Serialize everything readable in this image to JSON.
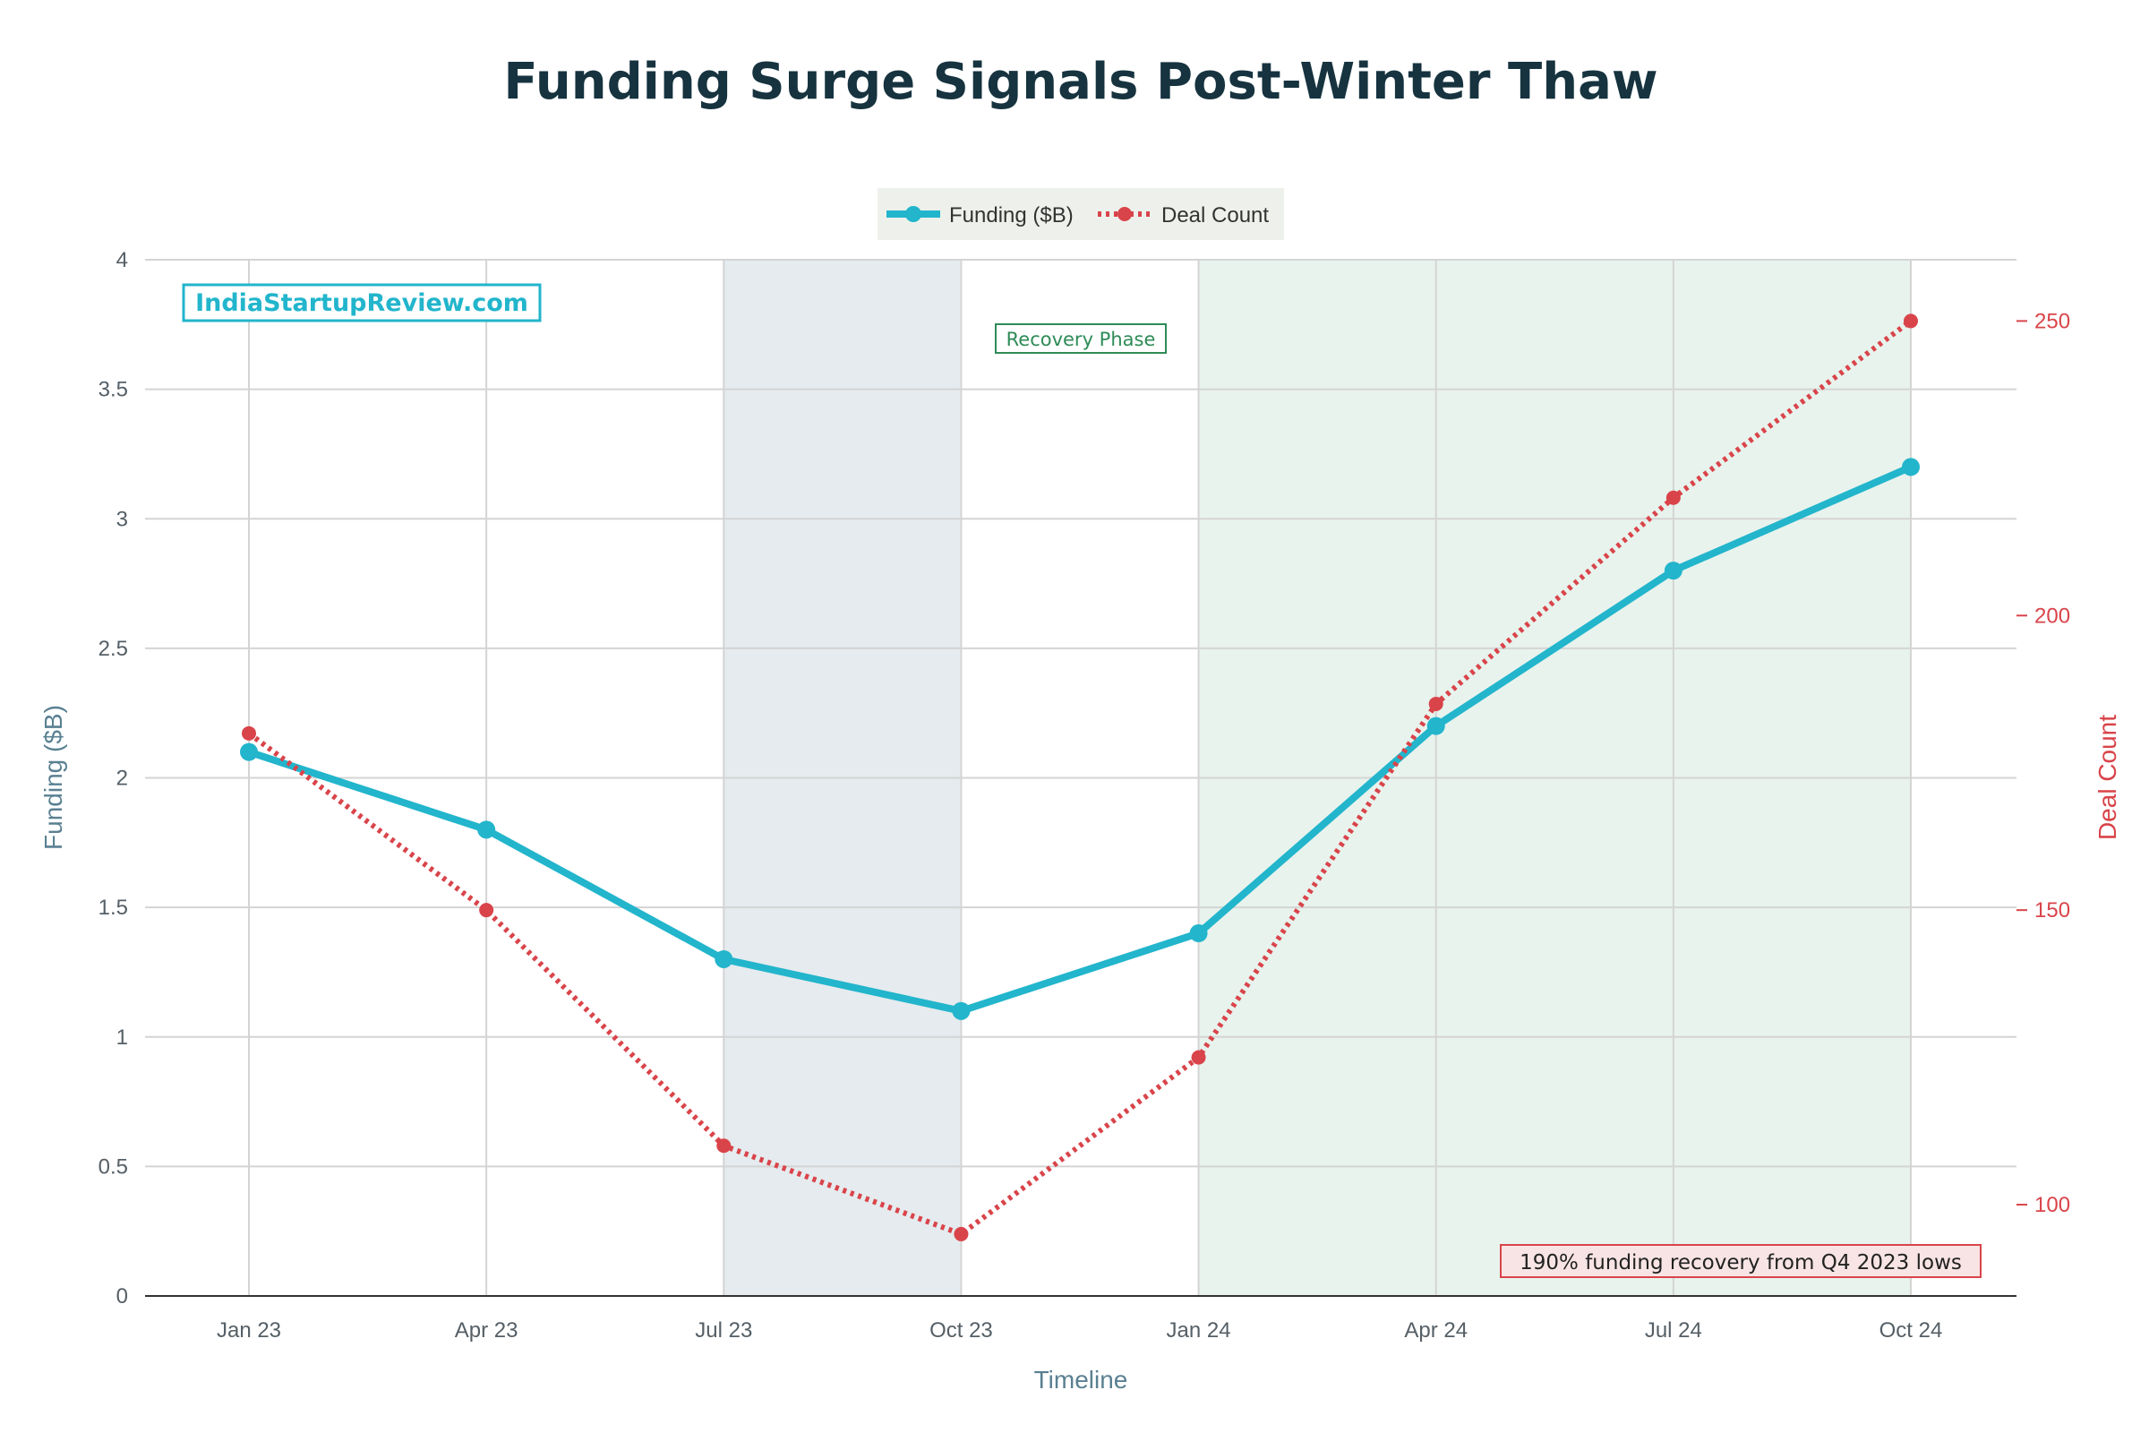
{
  "chart_data": {
    "type": "line",
    "title": "Funding Surge Signals Post-Winter Thaw",
    "xlabel": "Timeline",
    "ylabel": "Funding ($B)",
    "y2label": "Deal Count",
    "categories": [
      "Jan 23",
      "Apr 23",
      "Jul 23",
      "Oct 23",
      "Jan 24",
      "Apr 24",
      "Jul 24",
      "Oct 24"
    ],
    "series": [
      {
        "name": "Funding ($B)",
        "axis": "left",
        "values": [
          2.1,
          1.8,
          1.3,
          1.1,
          1.4,
          2.2,
          2.8,
          3.2
        ],
        "color": "#22b5cc",
        "style": "solid"
      },
      {
        "name": "Deal Count",
        "axis": "right",
        "values": [
          180,
          150,
          110,
          95,
          125,
          185,
          220,
          250
        ],
        "color": "#d9444a",
        "style": "dotted"
      }
    ],
    "ylim": [
      0,
      4
    ],
    "yticks": [
      "0",
      "0.5",
      "1",
      "1.5",
      "2",
      "2.5",
      "3",
      "3.5",
      "4"
    ],
    "y2lim": [
      84.5,
      260.4
    ],
    "y2ticks": [
      "100",
      "150",
      "200",
      "250"
    ],
    "shaded_regions": [
      {
        "from": "Jul 23",
        "to": "Oct 23",
        "color": "#e5ebee"
      },
      {
        "from": "Jan 24",
        "to": "Oct 24",
        "color": "#e8f3ed"
      }
    ],
    "annotations": {
      "watermark": "IndiaStartupReview.com",
      "phase_label": "Recovery Phase",
      "callout": "190% funding recovery from Q4 2023 lows"
    },
    "legend_position": "top-center",
    "grid": true
  },
  "colors": {
    "title": "#16333f",
    "axis_label": "#5a8092",
    "tick": "#555f66",
    "funding": "#22b5cc",
    "deals": "#d9444a",
    "phase_label": "#2e8b57",
    "callout_bg": "#f8e4e4"
  }
}
